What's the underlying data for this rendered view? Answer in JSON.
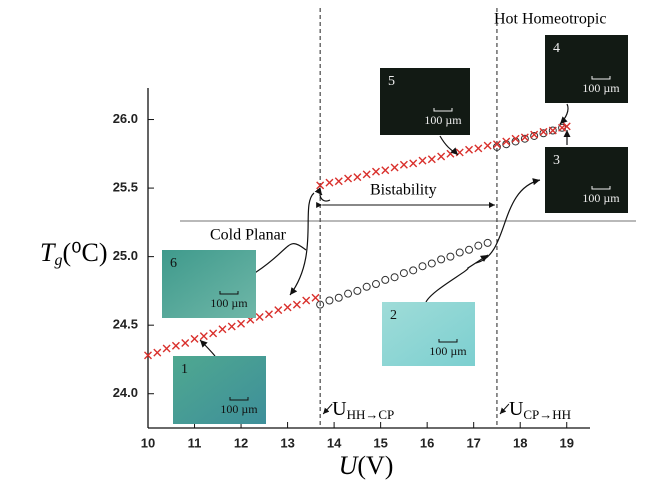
{
  "chart_data": {
    "type": "scatter",
    "x_label": {
      "symbol": "U",
      "unit": "(V)"
    },
    "y_label": {
      "symbol": "T",
      "sub": "g",
      "unit": "(⁰C)"
    },
    "xlim": [
      10,
      19.5
    ],
    "ylim": [
      23.75,
      26.23
    ],
    "xticks": [
      10,
      11,
      12,
      13,
      14,
      15,
      16,
      17,
      18,
      19
    ],
    "yticks": [
      {
        "value": 24,
        "label": "24.0"
      },
      {
        "value": 24.5,
        "label": "24.5"
      },
      {
        "value": 25,
        "label": "25.0"
      },
      {
        "value": 25.5,
        "label": "25.5"
      },
      {
        "value": 26,
        "label": "26.0"
      }
    ],
    "series": [
      {
        "marker": "circle",
        "color": "#333333",
        "x": [
          13.7,
          13.9,
          14.1,
          14.3,
          14.5,
          14.7,
          14.9,
          15.1,
          15.3,
          15.5,
          15.7,
          15.9,
          16.1,
          16.3,
          16.5,
          16.7,
          16.9,
          17.1,
          17.3,
          17.5,
          17.7,
          17.9,
          18.1,
          18.3,
          18.5,
          18.7,
          18.9
        ],
        "values": [
          24.65,
          24.68,
          24.7,
          24.73,
          24.75,
          24.78,
          24.8,
          24.83,
          24.85,
          24.88,
          24.9,
          24.93,
          24.95,
          24.98,
          25.0,
          25.03,
          25.05,
          25.08,
          25.1,
          25.8,
          25.82,
          25.84,
          25.86,
          25.88,
          25.9,
          25.92,
          25.94
        ]
      },
      {
        "marker": "cross",
        "color": "#d9302c",
        "x": [
          10,
          10.2,
          10.4,
          10.6,
          10.8,
          11,
          11.2,
          11.4,
          11.6,
          11.8,
          12,
          12.2,
          12.4,
          12.6,
          12.8,
          13,
          13.2,
          13.4,
          13.6,
          13.7,
          13.9,
          14.1,
          14.3,
          14.5,
          14.7,
          14.9,
          15.1,
          15.3,
          15.5,
          15.7,
          15.9,
          16.1,
          16.3,
          16.5,
          16.7,
          16.9,
          17.1,
          17.3,
          17.5,
          17.7,
          17.9,
          18.1,
          18.3,
          18.5,
          18.7,
          18.9,
          19
        ],
        "values": [
          24.28,
          24.3,
          24.33,
          24.35,
          24.37,
          24.4,
          24.42,
          24.44,
          24.47,
          24.49,
          24.51,
          24.54,
          24.56,
          24.58,
          24.61,
          24.63,
          24.65,
          24.68,
          24.7,
          25.52,
          25.54,
          25.55,
          25.57,
          25.58,
          25.6,
          25.62,
          25.63,
          25.65,
          25.67,
          25.68,
          25.7,
          25.71,
          25.73,
          25.75,
          25.76,
          25.78,
          25.79,
          25.81,
          25.82,
          25.84,
          25.86,
          25.87,
          25.89,
          25.91,
          25.92,
          25.94,
          25.95
        ]
      }
    ],
    "vlines": [
      {
        "value": 13.7,
        "main": "U",
        "sub": "HH→CP"
      },
      {
        "value": 17.5,
        "main": "U",
        "sub": "CP→HH"
      }
    ],
    "hline": 25.26,
    "annotations": {
      "hot": "Hot Homeotropic",
      "cold": "Cold Planar",
      "bistability": "Bistability"
    },
    "insets": [
      {
        "label": "1",
        "scale": "100 µm"
      },
      {
        "label": "2",
        "scale": "100 µm"
      },
      {
        "label": "3",
        "scale": "100 µm"
      },
      {
        "label": "4",
        "scale": "100 µm"
      },
      {
        "label": "5",
        "scale": "100 µm"
      },
      {
        "label": "6",
        "scale": "100 µm"
      }
    ]
  }
}
